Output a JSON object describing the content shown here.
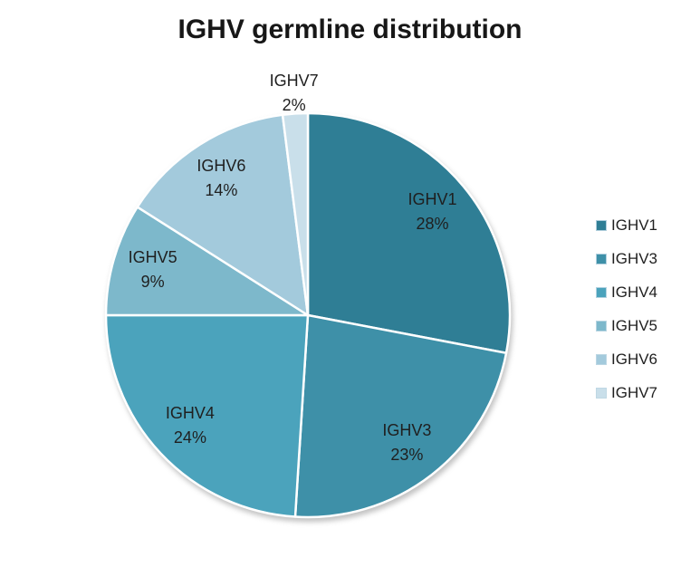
{
  "chart_data": {
    "type": "pie",
    "title": "IGHV germline distribution",
    "unit": "%",
    "start_angle_deg": 0,
    "direction": "clockwise",
    "legend_position": "right",
    "slices": [
      {
        "label": "IGHV1",
        "value": 28,
        "percent_label": "28%",
        "color": "#2F7E95",
        "label_placement": "inside"
      },
      {
        "label": "IGHV3",
        "value": 23,
        "percent_label": "23%",
        "color": "#3E90A8",
        "label_placement": "inside"
      },
      {
        "label": "IGHV4",
        "value": 24,
        "percent_label": "24%",
        "color": "#4BA3BC",
        "label_placement": "inside"
      },
      {
        "label": "IGHV5",
        "value": 9,
        "percent_label": "9%",
        "color": "#7DB8CB",
        "label_placement": "inside"
      },
      {
        "label": "IGHV6",
        "value": 14,
        "percent_label": "14%",
        "color": "#A3CADC",
        "label_placement": "inside"
      },
      {
        "label": "IGHV7",
        "value": 2,
        "percent_label": "2%",
        "color": "#C9DFEA",
        "label_placement": "outside"
      }
    ],
    "legend": [
      "IGHV1",
      "IGHV3",
      "IGHV4",
      "IGHV5",
      "IGHV6",
      "IGHV7"
    ]
  },
  "style": {
    "background": "#FFFFFF",
    "slice_border_color": "#FFFFFF",
    "title_color": "#171717",
    "label_color": "#1F1F1F"
  }
}
